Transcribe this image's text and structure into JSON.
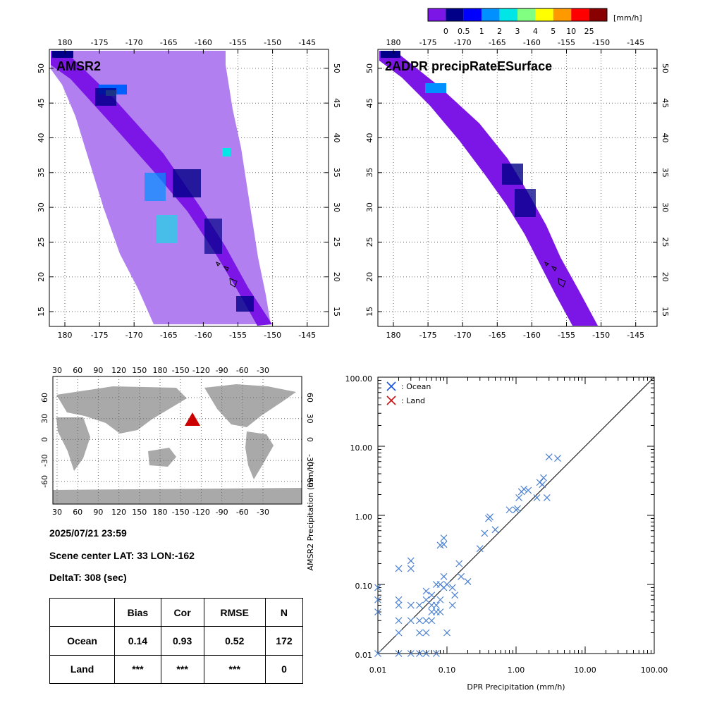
{
  "colorbar": {
    "unit": "[mm/h]",
    "labels": [
      "0",
      "0.5",
      "1",
      "2",
      "3",
      "4",
      "5",
      "10",
      "25"
    ],
    "colors": [
      "#7b16e6",
      "#000088",
      "#0000ff",
      "#0090ff",
      "#00e6e6",
      "#80ff80",
      "#ffff00",
      "#ff9900",
      "#ff0000",
      "#880000"
    ]
  },
  "maps": [
    {
      "title": "AMSR2"
    },
    {
      "title": "2ADPR precipRateESurface"
    }
  ],
  "map_axes": {
    "lon_ticks": [
      "180",
      "-175",
      "-170",
      "-165",
      "-160",
      "-155",
      "-150",
      "-145"
    ],
    "lat_ticks": [
      "15",
      "20",
      "25",
      "30",
      "35",
      "40",
      "45",
      "50"
    ]
  },
  "world": {
    "top_ticks": [
      "30",
      "60",
      "90",
      "120",
      "150",
      "180",
      "-150",
      "-120",
      "-90",
      "-60",
      "-30"
    ],
    "bottom_ticks": [
      "30",
      "60",
      "90",
      "120",
      "150",
      "180",
      "-150",
      "-120",
      "-90",
      "-60",
      "-30"
    ],
    "lat_ticks": [
      "60",
      "30",
      "0",
      "-30",
      "-60"
    ]
  },
  "info": {
    "datetime": "2025/07/21 23:59",
    "scene_center": "Scene center LAT: 33   LON:-162",
    "delta": "DeltaT:  308 (sec)"
  },
  "stats": {
    "headers": [
      "",
      "Bias",
      "Cor",
      "RMSE",
      "N"
    ],
    "rows": [
      [
        "Ocean",
        "0.14",
        "0.93",
        "0.52",
        "172"
      ],
      [
        "Land",
        "***",
        "***",
        "***",
        "0"
      ]
    ]
  },
  "chart_data": {
    "type": "scatter",
    "xlabel": "DPR Precipitation (mm/h)",
    "ylabel": "AMSR2 Precipitation (mm/h)",
    "xscale": "log",
    "yscale": "log",
    "xlim": [
      0.01,
      100
    ],
    "ylim": [
      0.01,
      100
    ],
    "x_ticks": [
      "0.01",
      "0.10",
      "1.00",
      "10.00",
      "100.00"
    ],
    "y_ticks": [
      "0.01",
      "0.10",
      "1.00",
      "10.00",
      "100.00"
    ],
    "legend": [
      {
        "name": ": Ocean",
        "color": "#1a55dd"
      },
      {
        "name": ": Land",
        "color": "#cc1111"
      }
    ],
    "series": [
      {
        "name": ": Ocean",
        "color": "#4a7fd0",
        "points": [
          [
            0.01,
            0.09
          ],
          [
            0.01,
            0.06
          ],
          [
            0.01,
            0.04
          ],
          [
            0.01,
            0.01
          ],
          [
            0.02,
            0.17
          ],
          [
            0.02,
            0.06
          ],
          [
            0.02,
            0.05
          ],
          [
            0.02,
            0.03
          ],
          [
            0.02,
            0.02
          ],
          [
            0.02,
            0.01
          ],
          [
            0.03,
            0.22
          ],
          [
            0.03,
            0.17
          ],
          [
            0.03,
            0.05
          ],
          [
            0.03,
            0.03
          ],
          [
            0.03,
            0.01
          ],
          [
            0.04,
            0.05
          ],
          [
            0.04,
            0.03
          ],
          [
            0.04,
            0.02
          ],
          [
            0.04,
            0.01
          ],
          [
            0.05,
            0.08
          ],
          [
            0.05,
            0.06
          ],
          [
            0.05,
            0.03
          ],
          [
            0.05,
            0.02
          ],
          [
            0.05,
            0.01
          ],
          [
            0.06,
            0.07
          ],
          [
            0.06,
            0.05
          ],
          [
            0.06,
            0.04
          ],
          [
            0.06,
            0.03
          ],
          [
            0.07,
            0.1
          ],
          [
            0.07,
            0.05
          ],
          [
            0.07,
            0.04
          ],
          [
            0.07,
            0.01
          ],
          [
            0.08,
            0.37
          ],
          [
            0.08,
            0.1
          ],
          [
            0.08,
            0.06
          ],
          [
            0.08,
            0.04
          ],
          [
            0.09,
            0.47
          ],
          [
            0.09,
            0.38
          ],
          [
            0.09,
            0.13
          ],
          [
            0.09,
            0.09
          ],
          [
            0.1,
            0.1
          ],
          [
            0.1,
            0.02
          ],
          [
            0.12,
            0.09
          ],
          [
            0.12,
            0.05
          ],
          [
            0.13,
            0.07
          ],
          [
            0.15,
            0.2
          ],
          [
            0.16,
            0.13
          ],
          [
            0.2,
            0.11
          ],
          [
            0.3,
            0.33
          ],
          [
            0.35,
            0.55
          ],
          [
            0.4,
            0.9
          ],
          [
            0.42,
            0.95
          ],
          [
            0.5,
            0.62
          ],
          [
            0.8,
            1.2
          ],
          [
            1.0,
            1.2
          ],
          [
            1.05,
            1.25
          ],
          [
            1.1,
            1.8
          ],
          [
            1.2,
            2.2
          ],
          [
            1.3,
            2.4
          ],
          [
            1.5,
            2.3
          ],
          [
            2.0,
            1.8
          ],
          [
            2.2,
            3.0
          ],
          [
            2.4,
            2.8
          ],
          [
            2.5,
            3.5
          ],
          [
            2.8,
            1.8
          ],
          [
            3.0,
            7.0
          ],
          [
            4.0,
            6.7
          ]
        ]
      },
      {
        "name": ": Land",
        "color": "#cc1111",
        "points": []
      }
    ]
  }
}
